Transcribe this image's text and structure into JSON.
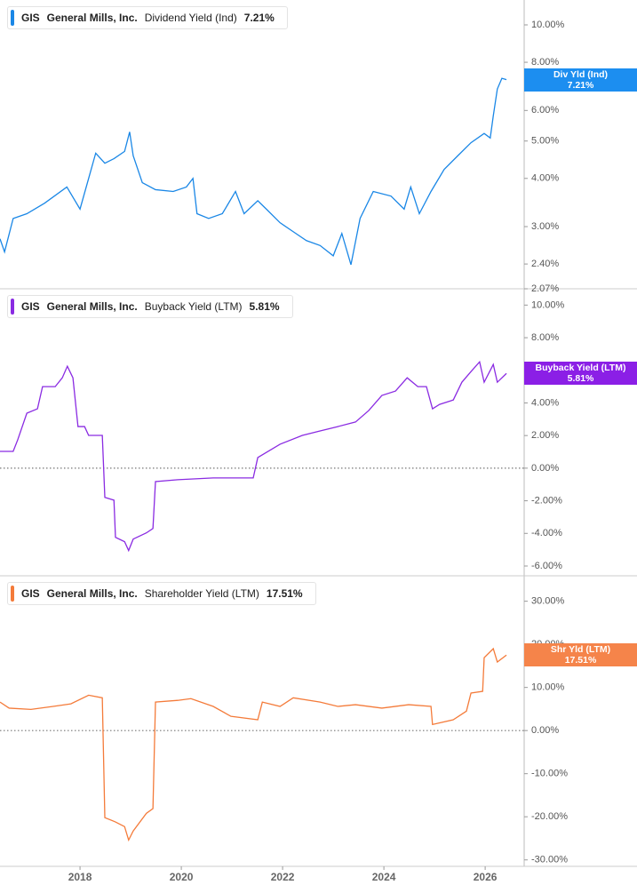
{
  "chart_data": [
    {
      "type": "line",
      "ticker": "GIS",
      "company": "General Mills, Inc.",
      "log_scale": true,
      "zero_line": false,
      "tag_label": "Div Yld (Ind)",
      "current": {
        "value": 7.21,
        "label": "7.21%"
      },
      "xlim": [
        2016.42,
        2026.77
      ],
      "x": [
        2016.42,
        2016.51,
        2016.68,
        2016.95,
        2017.3,
        2017.74,
        2018.0,
        2018.17,
        2018.31,
        2018.49,
        2018.67,
        2018.88,
        2018.98,
        2019.05,
        2019.23,
        2019.49,
        2019.84,
        2020.1,
        2020.23,
        2020.31,
        2020.54,
        2020.81,
        2021.07,
        2021.24,
        2021.51,
        2021.68,
        2021.95,
        2022.21,
        2022.47,
        2022.74,
        2023.0,
        2023.17,
        2023.35,
        2023.53,
        2023.79,
        2024.14,
        2024.4,
        2024.53,
        2024.7,
        2024.93,
        2025.19,
        2025.46,
        2025.72,
        2025.98,
        2026.1,
        2026.16,
        2026.24,
        2026.33,
        2026.42
      ],
      "ylim": [
        2.07,
        11.6
      ],
      "yticks": [
        {
          "value": 2.07,
          "label": "2.07%"
        },
        {
          "value": 2.4,
          "label": "2.40%"
        },
        {
          "value": 3,
          "label": "3.00%"
        },
        {
          "value": 4,
          "label": "4.00%"
        },
        {
          "value": 5,
          "label": "5.00%"
        },
        {
          "value": 6,
          "label": "6.00%"
        },
        {
          "value": 8,
          "label": "8.00%"
        },
        {
          "value": 10,
          "label": "10.00%"
        }
      ],
      "series": [
        {
          "name": "Dividend Yield (Ind)",
          "color": "#1a87e6",
          "tag_color": "#1c8ef0",
          "values": [
            2.79,
            2.58,
            3.15,
            3.24,
            3.45,
            3.8,
            3.33,
            4.0,
            4.65,
            4.38,
            4.5,
            4.7,
            5.28,
            4.58,
            3.9,
            3.74,
            3.7,
            3.8,
            4.0,
            3.24,
            3.15,
            3.24,
            3.7,
            3.24,
            3.5,
            3.33,
            3.07,
            2.91,
            2.76,
            2.68,
            2.52,
            2.88,
            2.39,
            3.15,
            3.7,
            3.6,
            3.33,
            3.8,
            3.24,
            3.7,
            4.22,
            4.58,
            4.95,
            5.23,
            5.09,
            5.81,
            6.82,
            7.27,
            7.21
          ]
        }
      ]
    },
    {
      "type": "line",
      "ticker": "GIS",
      "company": "General Mills, Inc.",
      "log_scale": false,
      "zero_line": true,
      "tag_label": "Buyback Yield (LTM)",
      "current": {
        "value": 5.81,
        "label": "5.81%"
      },
      "xlim": [
        2016.42,
        2026.77
      ],
      "x": [
        2016.42,
        2016.68,
        2016.77,
        2016.95,
        2017.16,
        2017.26,
        2017.51,
        2017.65,
        2017.75,
        2017.86,
        2017.96,
        2018.09,
        2018.17,
        2018.44,
        2018.49,
        2018.67,
        2018.7,
        2018.88,
        2018.96,
        2019.05,
        2019.31,
        2019.44,
        2019.49,
        2019.93,
        2020.63,
        2021.42,
        2021.51,
        2021.95,
        2022.39,
        2022.74,
        2023.09,
        2023.44,
        2023.7,
        2023.96,
        2024.23,
        2024.46,
        2024.67,
        2024.84,
        2024.96,
        2025.1,
        2025.37,
        2025.54,
        2025.72,
        2025.89,
        2025.98,
        2026.16,
        2026.24,
        2026.42
      ],
      "ylim": [
        -6.6,
        11
      ],
      "yticks": [
        {
          "value": -6,
          "label": "-6.00%"
        },
        {
          "value": -4,
          "label": "-4.00%"
        },
        {
          "value": -2,
          "label": "-2.00%"
        },
        {
          "value": 0,
          "label": "0.00%"
        },
        {
          "value": 2,
          "label": "2.00%"
        },
        {
          "value": 4,
          "label": "4.00%"
        },
        {
          "value": 8,
          "label": "8.00%"
        },
        {
          "value": 10,
          "label": "10.00%"
        }
      ],
      "series": [
        {
          "name": "Buyback Yield (LTM)",
          "color": "#8a2be2",
          "tag_color": "#8b1fe6",
          "values": [
            1.03,
            1.03,
            1.74,
            3.37,
            3.64,
            5.0,
            5.0,
            5.54,
            6.25,
            5.54,
            2.55,
            2.55,
            2.01,
            2.01,
            -1.79,
            -1.96,
            -4.24,
            -4.51,
            -5.05,
            -4.35,
            -3.97,
            -3.7,
            -0.82,
            -0.71,
            -0.6,
            -0.6,
            0.65,
            1.47,
            2.01,
            2.28,
            2.55,
            2.83,
            3.53,
            4.46,
            4.73,
            5.54,
            5.0,
            5.0,
            3.64,
            3.91,
            4.18,
            5.27,
            5.92,
            6.52,
            5.27,
            6.36,
            5.27,
            5.81
          ]
        }
      ]
    },
    {
      "type": "line",
      "ticker": "GIS",
      "company": "General Mills, Inc.",
      "log_scale": false,
      "zero_line": true,
      "tag_label": "Shr Yld (LTM)",
      "current": {
        "value": 17.51,
        "label": "17.51%"
      },
      "xlim": [
        2016.42,
        2026.77
      ],
      "xticks": [
        2018,
        2020,
        2022,
        2024,
        2026
      ],
      "x": [
        2016.42,
        2016.6,
        2017.03,
        2017.47,
        2017.82,
        2018.17,
        2018.44,
        2018.49,
        2018.7,
        2018.88,
        2018.96,
        2019.05,
        2019.31,
        2019.44,
        2019.49,
        2019.93,
        2020.19,
        2020.63,
        2020.98,
        2021.51,
        2021.6,
        2021.95,
        2022.21,
        2022.74,
        2023.09,
        2023.44,
        2023.96,
        2024.49,
        2024.93,
        2024.96,
        2025.37,
        2025.63,
        2025.72,
        2025.95,
        2025.98,
        2026.16,
        2026.24,
        2026.42
      ],
      "ylim": [
        -31.5,
        35.9
      ],
      "yticks": [
        {
          "value": -30,
          "label": "-30.00%"
        },
        {
          "value": -20,
          "label": "-20.00%"
        },
        {
          "value": -10,
          "label": "-10.00%"
        },
        {
          "value": 0,
          "label": "0.00%"
        },
        {
          "value": 10,
          "label": "10.00%"
        },
        {
          "value": 20,
          "label": "20.00%"
        },
        {
          "value": 30,
          "label": "30.00%"
        }
      ],
      "series": [
        {
          "name": "Shareholder Yield (LTM)",
          "color": "#f47b3a",
          "tag_color": "#f5844a",
          "values": [
            6.6,
            5.2,
            4.9,
            5.6,
            6.2,
            8.2,
            7.6,
            -20.2,
            -21.2,
            -22.3,
            -25.4,
            -23.3,
            -19.2,
            -18.1,
            6.6,
            7.0,
            7.4,
            5.6,
            3.3,
            2.5,
            6.6,
            5.6,
            7.6,
            6.6,
            5.6,
            6.0,
            5.2,
            6.0,
            5.6,
            1.4,
            2.5,
            4.5,
            8.7,
            9.1,
            16.9,
            19.0,
            15.9,
            17.51
          ]
        }
      ]
    }
  ]
}
